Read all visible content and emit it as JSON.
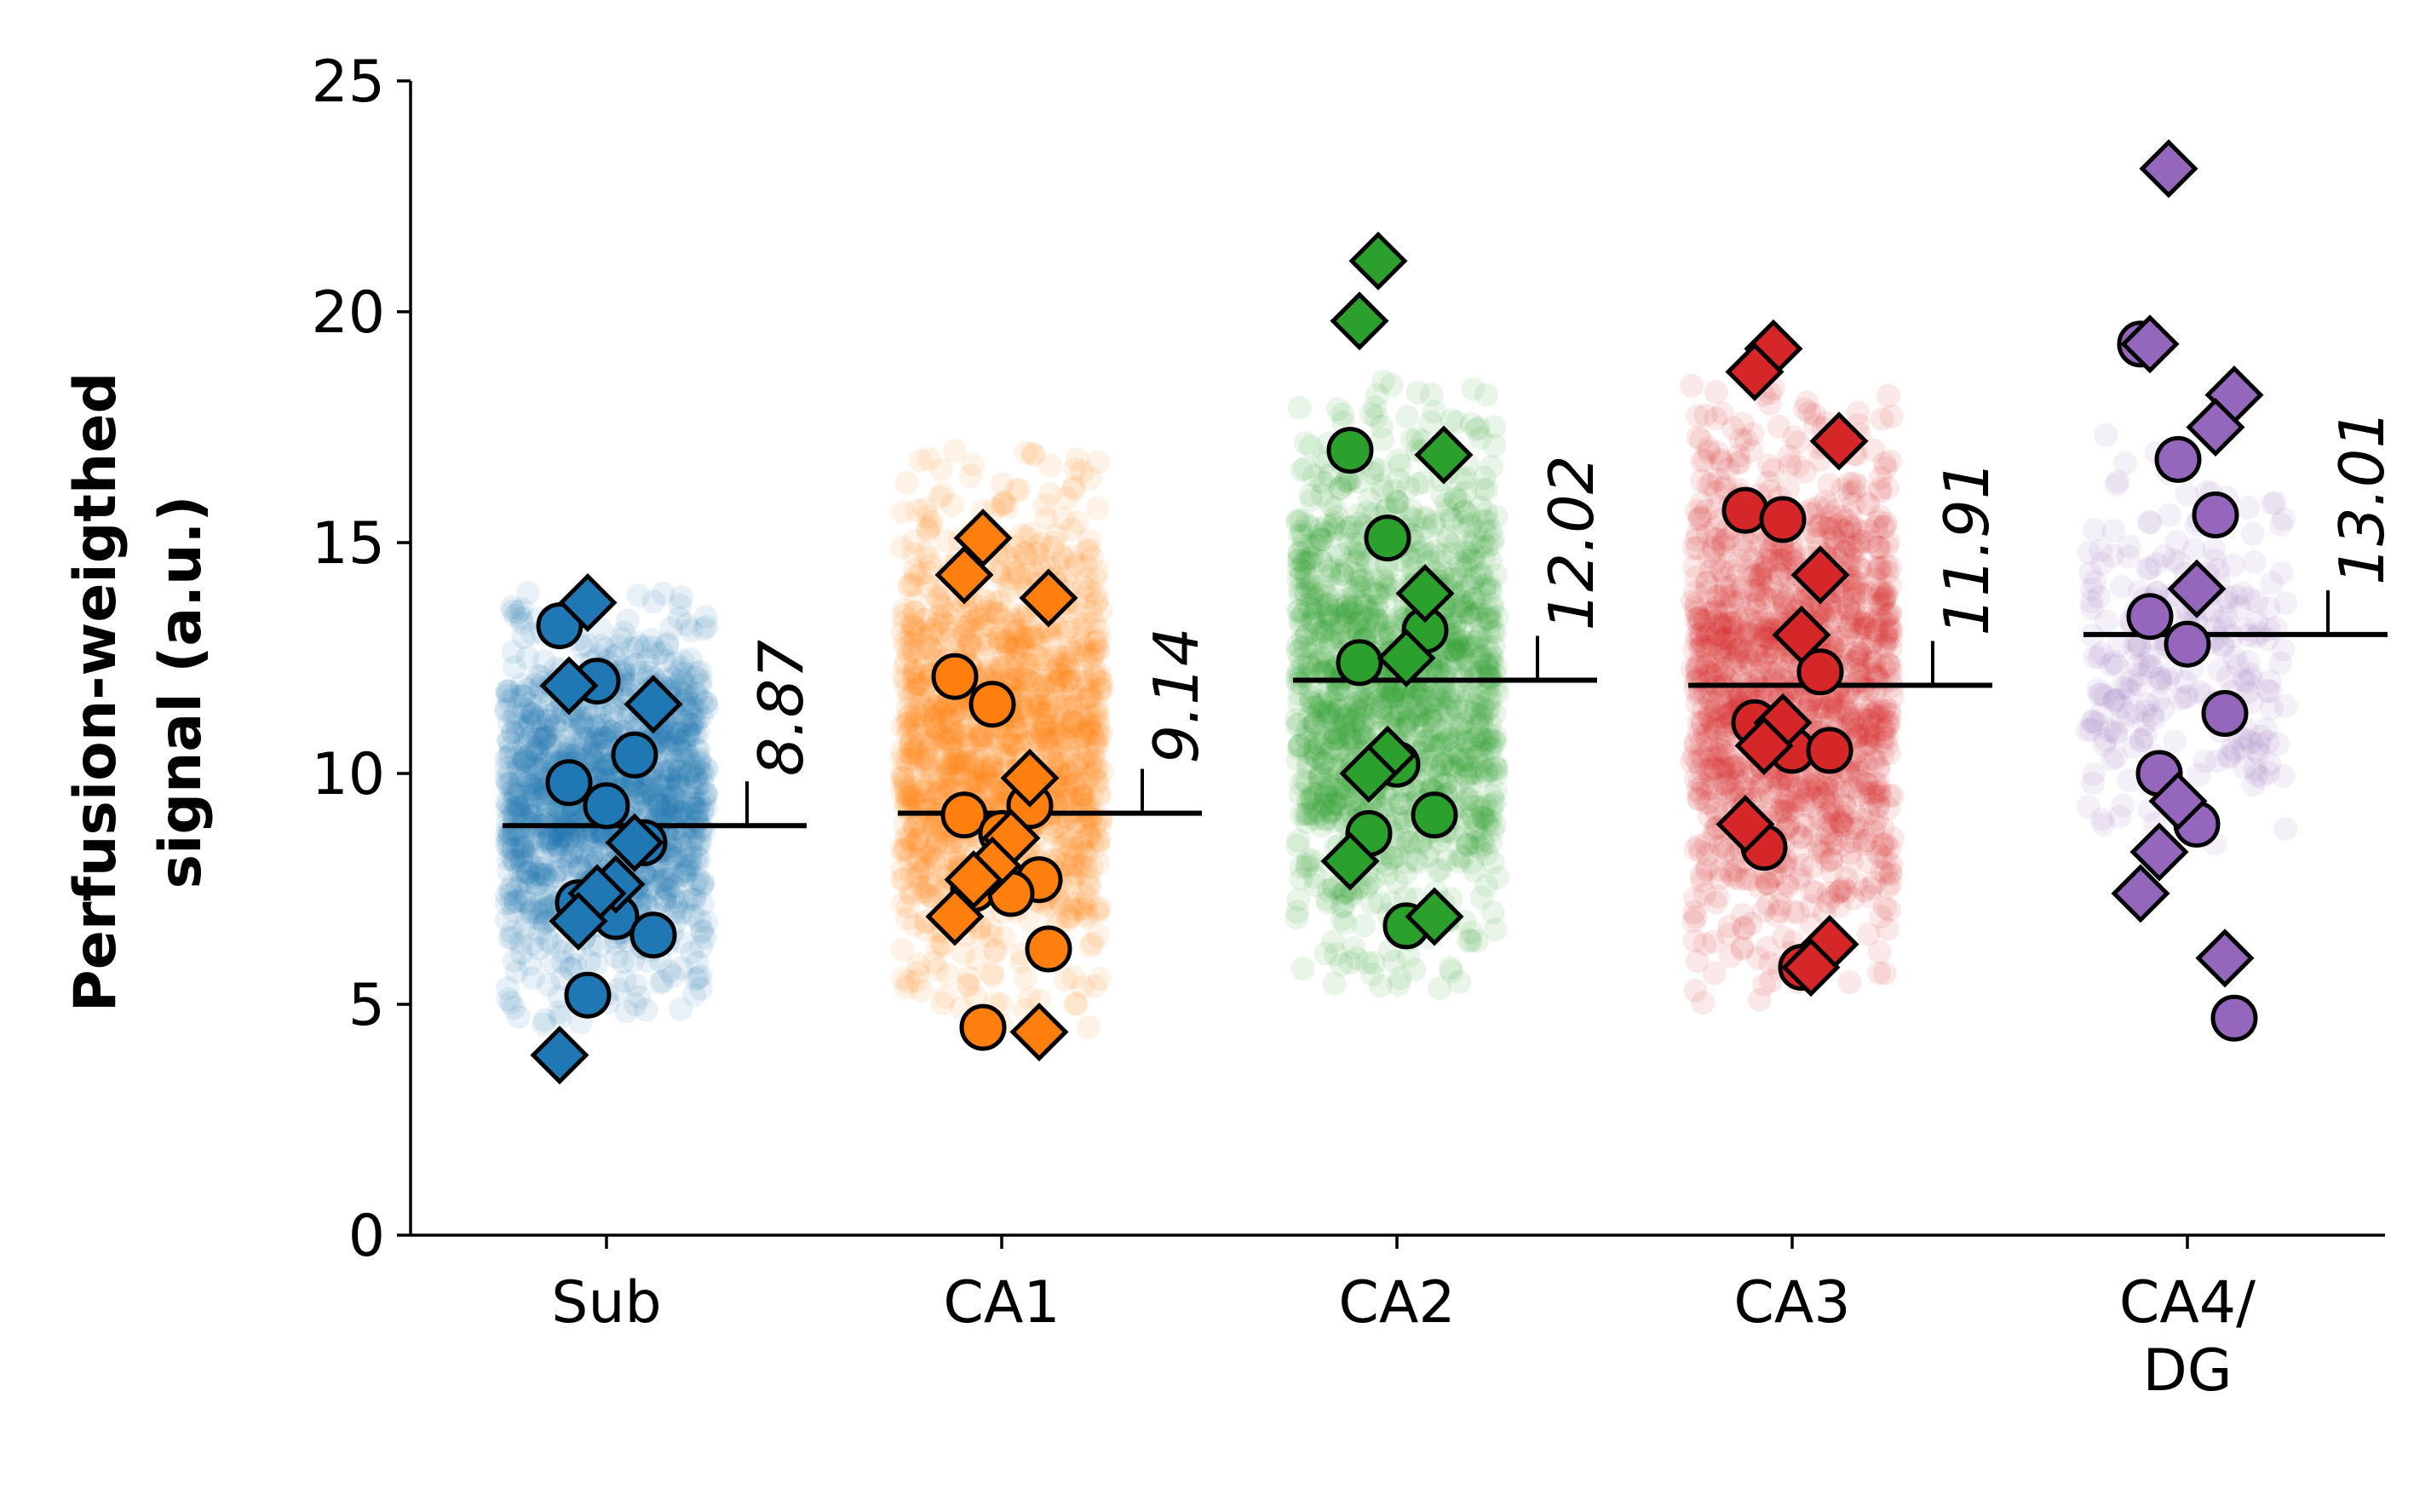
{
  "chart_data": {
    "type": "scatter",
    "ylabel_lines": [
      "Perfusion-weigthed",
      "signal (a.u.)"
    ],
    "xlabel": "",
    "ylim": [
      0,
      25
    ],
    "yticks": [
      0,
      5,
      10,
      15,
      20,
      25
    ],
    "grid": false,
    "categories": [
      {
        "label_lines": [
          "Sub"
        ],
        "color": "#1f77b4",
        "mean": 8.87,
        "mean_label": "8.87",
        "cloud_range": [
          4.5,
          14.0
        ],
        "circles": [
          13.2,
          12.0,
          10.4,
          9.8,
          9.3,
          8.5,
          7.2,
          6.9,
          6.5,
          5.2
        ],
        "diamonds": [
          13.7,
          11.9,
          11.5,
          8.5,
          7.6,
          7.4,
          6.8,
          3.9
        ]
      },
      {
        "label_lines": [
          "CA1"
        ],
        "color": "#ff7f0e",
        "mean": 9.14,
        "mean_label": "9.14",
        "cloud_range": [
          4.5,
          17.0
        ],
        "circles": [
          12.1,
          11.5,
          9.3,
          9.1,
          8.7,
          7.7,
          7.5,
          7.4,
          6.2,
          4.5
        ],
        "diamonds": [
          15.1,
          14.3,
          13.8,
          9.9,
          8.6,
          8.0,
          7.7,
          6.9,
          4.4
        ]
      },
      {
        "label_lines": [
          "CA2"
        ],
        "color": "#2ca02c",
        "mean": 12.02,
        "mean_label": "12.02",
        "cloud_range": [
          5.3,
          18.5
        ],
        "circles": [
          17.0,
          15.1,
          13.1,
          12.4,
          10.2,
          9.1,
          8.7,
          6.7
        ],
        "diamonds": [
          21.1,
          19.8,
          16.9,
          13.9,
          12.5,
          10.4,
          10.0,
          8.1,
          6.9
        ]
      },
      {
        "label_lines": [
          "CA3"
        ],
        "color": "#d62728",
        "mean": 11.91,
        "mean_label": "11.91",
        "cloud_range": [
          5.0,
          18.5
        ],
        "circles": [
          15.7,
          15.5,
          12.2,
          11.1,
          10.5,
          10.5,
          8.4,
          5.8
        ],
        "diamonds": [
          19.2,
          18.7,
          17.2,
          14.3,
          13.0,
          11.1,
          10.6,
          8.9,
          6.3,
          5.8
        ]
      },
      {
        "label_lines": [
          "CA4/",
          "DG"
        ],
        "color": "#9467bd",
        "mean": 13.01,
        "mean_label": "13.01",
        "cloud_range": [
          8.0,
          17.5
        ],
        "circles": [
          19.3,
          16.8,
          15.6,
          13.4,
          12.8,
          11.3,
          10.0,
          8.9,
          4.7
        ],
        "diamonds": [
          23.1,
          19.3,
          18.2,
          17.5,
          14.0,
          9.4,
          8.3,
          7.4,
          6.0
        ]
      }
    ]
  }
}
